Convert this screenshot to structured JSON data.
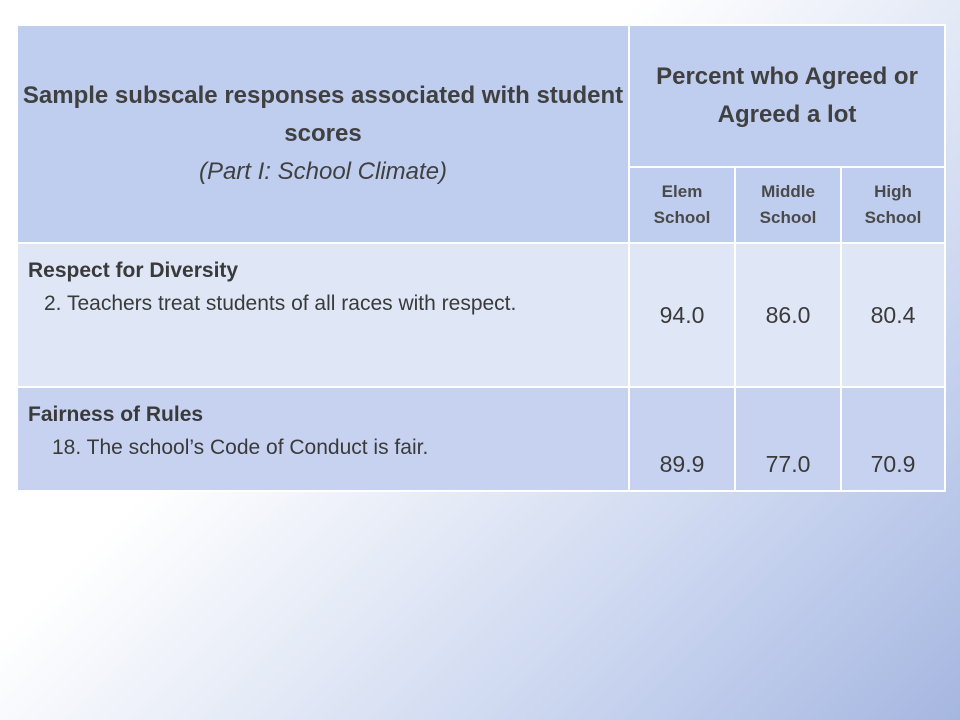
{
  "table": {
    "corner_title": "Sample subscale responses associated with student scores",
    "corner_subtitle": "(Part I: School Climate)",
    "percent_header": "Percent who Agreed or Agreed a lot",
    "levels": [
      {
        "line1": "Elem",
        "line2": "School"
      },
      {
        "line1": "Middle",
        "line2": "School"
      },
      {
        "line1": "High",
        "line2": "School"
      }
    ],
    "rows": [
      {
        "category": "Respect for Diversity",
        "statement": "2. Teachers treat students of all races with respect.",
        "values": [
          "94.0",
          "86.0",
          "80.4"
        ]
      },
      {
        "category": "Fairness of Rules",
        "statement": "18. The school’s Code of Conduct is fair.",
        "values": [
          "89.9",
          "77.0",
          "70.9"
        ]
      }
    ]
  },
  "colors": {
    "header_fill": "#bfcdee",
    "row1_fill": "#dfe6f5",
    "row2_fill": "#c6d2ef"
  }
}
